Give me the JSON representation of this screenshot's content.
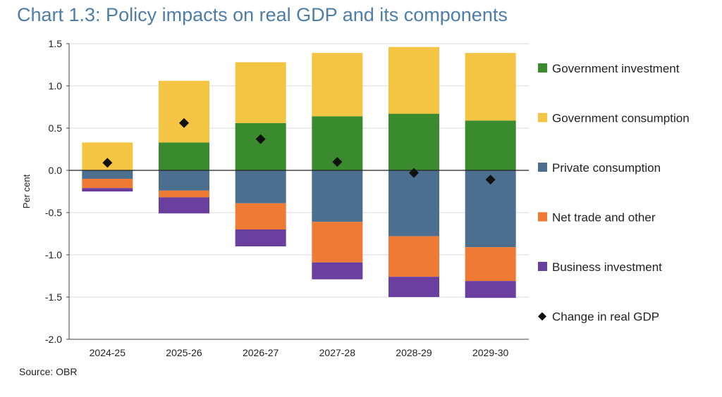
{
  "title": "Chart 1.3: Policy impacts on real GDP and its components",
  "source": "Source: OBR",
  "chart_data": {
    "type": "bar",
    "stacked": true,
    "categories": [
      "2024-25",
      "2025-26",
      "2026-27",
      "2027-28",
      "2028-29",
      "2029-30"
    ],
    "ylabel": "Per cent",
    "xlabel": "",
    "ylim": [
      -2.0,
      1.5
    ],
    "yticks": [
      "1.5",
      "1.0",
      "0.5",
      "0.0",
      "-0.5",
      "-1.0",
      "-1.5",
      "-2.0"
    ],
    "ytick_values": [
      1.5,
      1.0,
      0.5,
      0.0,
      -0.5,
      -1.0,
      -1.5,
      -2.0
    ],
    "legend_position": "right",
    "series": [
      {
        "name": "Government investment",
        "color": "#3a8a2e",
        "values": [
          0.0,
          0.33,
          0.56,
          0.64,
          0.67,
          0.59
        ]
      },
      {
        "name": "Government consumption",
        "color": "#f4c542",
        "values": [
          0.33,
          0.73,
          0.72,
          0.75,
          0.79,
          0.8
        ]
      },
      {
        "name": "Private consumption",
        "color": "#4d6f8f",
        "values": [
          -0.1,
          -0.24,
          -0.39,
          -0.61,
          -0.78,
          -0.91
        ]
      },
      {
        "name": "Net trade and other",
        "color": "#ee7a33",
        "values": [
          -0.11,
          -0.08,
          -0.31,
          -0.48,
          -0.48,
          -0.4
        ]
      },
      {
        "name": "Business investment",
        "color": "#6b3fa0",
        "values": [
          -0.04,
          -0.19,
          -0.2,
          -0.2,
          -0.24,
          -0.2
        ]
      }
    ],
    "markers": {
      "name": "Change in real GDP",
      "color": "#111111",
      "values": [
        0.09,
        0.56,
        0.37,
        0.1,
        -0.03,
        -0.11
      ]
    }
  }
}
